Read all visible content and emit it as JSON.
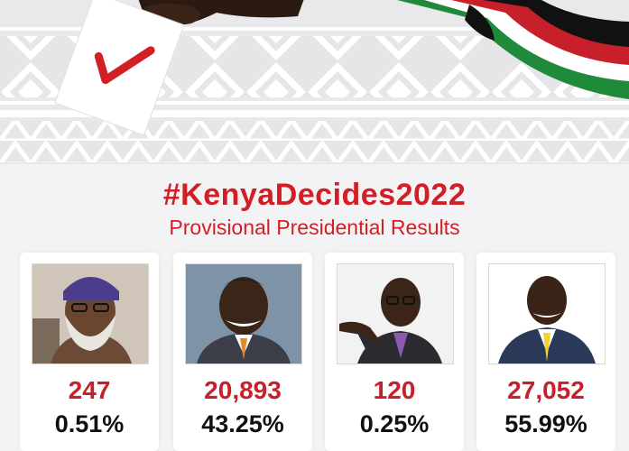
{
  "header": {
    "hashtag": "#KenyaDecides2022",
    "subtitle": "Provisional Presidential Results"
  },
  "colors": {
    "accent": "#d21f26",
    "flag_black": "#111111",
    "flag_red": "#c8202a",
    "flag_green": "#1f8a3a"
  },
  "candidates": [
    {
      "photo": "candidate-1-portrait",
      "votes": "247",
      "percent": "0.51%"
    },
    {
      "photo": "candidate-2-portrait",
      "votes": "20,893",
      "percent": "43.25%"
    },
    {
      "photo": "candidate-3-portrait",
      "votes": "120",
      "percent": "0.25%"
    },
    {
      "photo": "candidate-4-portrait",
      "votes": "27,052",
      "percent": "55.99%"
    }
  ]
}
